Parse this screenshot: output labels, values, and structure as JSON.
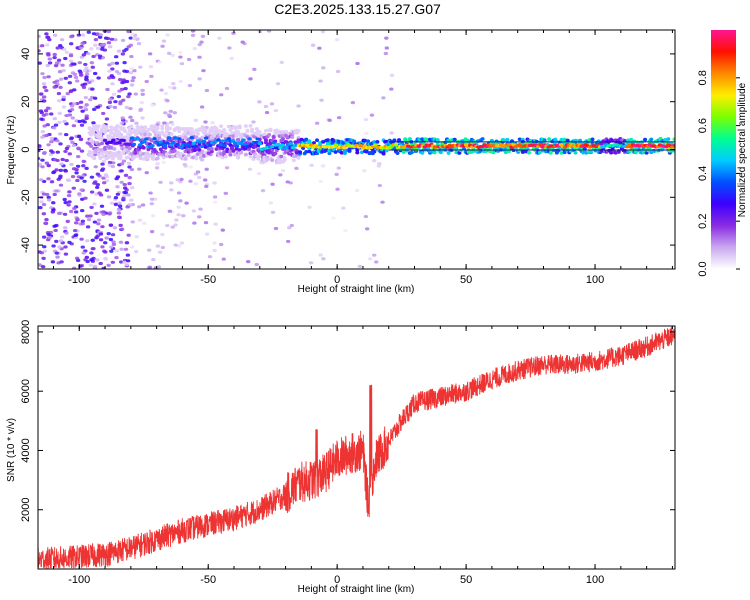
{
  "title": "C2E3.2025.133.15.27.G07",
  "chart_data": [
    {
      "type": "heatmap",
      "name": "spectrogram",
      "xlabel": "Height of straight line (km)",
      "ylabel": "Frequency (Hz)",
      "xlim": [
        -116,
        131
      ],
      "ylim": [
        -50,
        50
      ],
      "xticks": [
        -100,
        -50,
        0,
        50,
        100
      ],
      "yticks": [
        -40,
        -20,
        0,
        20,
        40
      ],
      "xtick_labels": [
        "-100",
        "-50",
        "0",
        "50",
        "100"
      ],
      "ytick_labels": [
        "-40",
        "-20",
        "0",
        "20",
        "40"
      ],
      "colorbar": {
        "label": "Normalized spectral amplitude",
        "range": [
          0,
          1
        ],
        "ticks": [
          0.0,
          0.2,
          0.4,
          0.6,
          0.8
        ],
        "tick_labels": [
          "0.0",
          "0.2",
          "0.4",
          "0.6",
          "0.8"
        ],
        "colormap": "rainbow",
        "stops": [
          "#ffffff",
          "#c9a8f0",
          "#8a2be2",
          "#3c00ff",
          "#0050ff",
          "#00ccff",
          "#00ff90",
          "#7aff00",
          "#ffee00",
          "#ff8800",
          "#ff1000",
          "#ff1493"
        ]
      },
      "ridge": {
        "description_freq_hz": 1.5,
        "segments": [
          {
            "x": [
              -96,
              -80
            ],
            "freq": [
              2,
              4
            ],
            "amplitude": 0.25
          },
          {
            "x": [
              -80,
              -30
            ],
            "freq": [
              1,
              5
            ],
            "amplitude": 0.4
          },
          {
            "x": [
              -30,
              -15
            ],
            "freq": [
              0,
              3
            ],
            "amplitude": 0.45
          },
          {
            "x": [
              -15,
              25
            ],
            "freq": [
              0.5,
              2
            ],
            "amplitude": 0.75
          },
          {
            "x": [
              25,
              102
            ],
            "freq": [
              1,
              2
            ],
            "amplitude": 0.9
          },
          {
            "x": [
              102,
              112
            ],
            "freq": [
              1,
              2
            ],
            "amplitude": 0.5
          },
          {
            "x": [
              112,
              131
            ],
            "freq": [
              1,
              2
            ],
            "amplitude": 0.95
          }
        ]
      }
    },
    {
      "type": "line",
      "name": "snr",
      "xlabel": "Height of straight line (km)",
      "ylabel": "SNR (10 * v/v)",
      "xlim": [
        -116,
        131
      ],
      "ylim": [
        0,
        8200
      ],
      "xticks": [
        -100,
        -50,
        0,
        50,
        100
      ],
      "yticks": [
        2000,
        4000,
        6000,
        8000
      ],
      "xtick_labels": [
        "-100",
        "-50",
        "0",
        "50",
        "100"
      ],
      "ytick_labels": [
        "2000",
        "4000",
        "6000",
        "8000"
      ],
      "color": "#ee3333",
      "series": [
        {
          "name": "SNR",
          "x": [
            -116,
            -100,
            -90,
            -80,
            -70,
            -60,
            -50,
            -40,
            -30,
            -20,
            -15,
            -10,
            -5,
            0,
            5,
            10,
            12,
            15,
            20,
            25,
            30,
            40,
            50,
            60,
            70,
            80,
            90,
            100,
            110,
            120,
            131
          ],
          "y": [
            300,
            400,
            500,
            700,
            1000,
            1300,
            1500,
            1700,
            2000,
            2500,
            2900,
            3000,
            3200,
            3700,
            3900,
            4000,
            2200,
            3700,
            4300,
            5000,
            5600,
            5800,
            6000,
            6400,
            6700,
            6900,
            6900,
            7000,
            7200,
            7500,
            7900
          ]
        }
      ]
    }
  ]
}
